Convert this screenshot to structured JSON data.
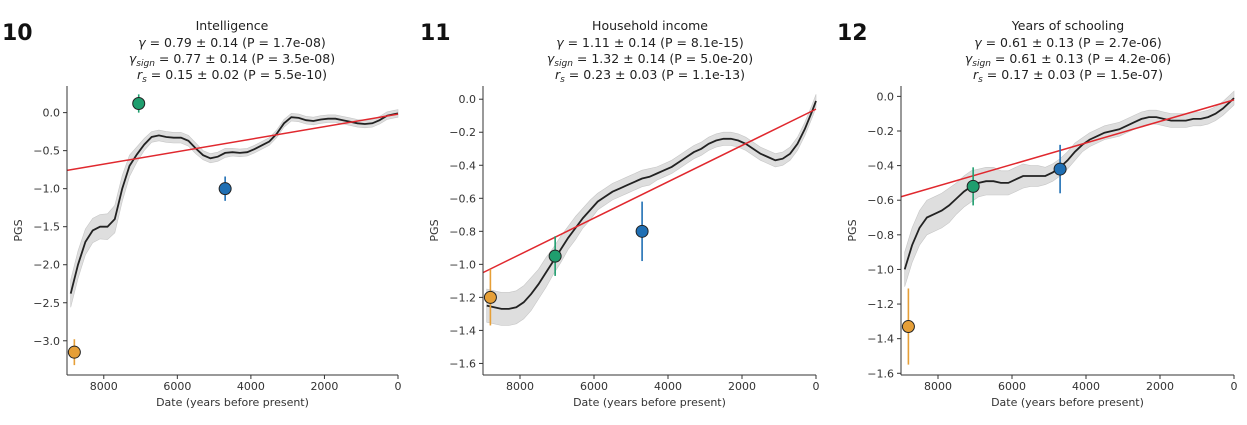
{
  "chart_data": [
    {
      "type": "line",
      "panel": "10",
      "title": "Intelligence",
      "stats": [
        {
          "sym": "γ",
          "sub": "",
          "text": " = 0.79 ± 0.14 (P = 1.7e-08)"
        },
        {
          "sym": "γ",
          "sub": "sign",
          "text": " = 0.77 ± 0.14 (P = 3.5e-08)"
        },
        {
          "sym": "r",
          "sub": "s",
          "text": " = 0.15 ± 0.02 (P = 5.5e-10)"
        }
      ],
      "xlabel": "Date (years before present)",
      "ylabel": "PGS",
      "xlim": [
        9000,
        0
      ],
      "ylim": [
        -3.45,
        0.35
      ],
      "xticks": [
        8000,
        6000,
        4000,
        2000,
        0
      ],
      "yticks": [
        0.0,
        -0.5,
        -1.0,
        -1.5,
        -2.0,
        -2.5,
        -3.0
      ],
      "ytick_labels": [
        "0.0",
        "−0.5",
        "−1.0",
        "−1.5",
        "−2.0",
        "−2.5",
        "−3.0"
      ],
      "smooth": {
        "x": [
          8900,
          8700,
          8500,
          8300,
          8100,
          7900,
          7700,
          7500,
          7300,
          7100,
          6900,
          6700,
          6500,
          6300,
          6100,
          5900,
          5700,
          5500,
          5300,
          5100,
          4900,
          4700,
          4500,
          4300,
          4100,
          3900,
          3700,
          3500,
          3300,
          3100,
          2900,
          2700,
          2500,
          2300,
          2100,
          1900,
          1700,
          1500,
          1300,
          1100,
          900,
          700,
          500,
          300,
          100,
          0
        ],
        "y": [
          -2.38,
          -2.0,
          -1.7,
          -1.55,
          -1.5,
          -1.5,
          -1.4,
          -1.0,
          -0.7,
          -0.55,
          -0.42,
          -0.32,
          -0.3,
          -0.32,
          -0.33,
          -0.33,
          -0.37,
          -0.47,
          -0.56,
          -0.6,
          -0.58,
          -0.53,
          -0.52,
          -0.53,
          -0.52,
          -0.48,
          -0.43,
          -0.38,
          -0.28,
          -0.14,
          -0.06,
          -0.07,
          -0.1,
          -0.11,
          -0.09,
          -0.08,
          -0.08,
          -0.1,
          -0.12,
          -0.14,
          -0.15,
          -0.14,
          -0.1,
          -0.04,
          -0.02,
          -0.01
        ],
        "band": [
          0.18,
          0.18,
          0.17,
          0.16,
          0.16,
          0.17,
          0.18,
          0.17,
          0.14,
          0.1,
          0.08,
          0.07,
          0.07,
          0.07,
          0.07,
          0.07,
          0.07,
          0.07,
          0.06,
          0.06,
          0.06,
          0.06,
          0.05,
          0.05,
          0.05,
          0.05,
          0.05,
          0.05,
          0.05,
          0.05,
          0.05,
          0.05,
          0.05,
          0.05,
          0.05,
          0.05,
          0.05,
          0.05,
          0.05,
          0.05,
          0.05,
          0.05,
          0.05,
          0.05,
          0.05,
          0.05
        ]
      },
      "fit": {
        "x": [
          9000,
          0
        ],
        "y": [
          -0.76,
          -0.02
        ]
      },
      "points": [
        {
          "x": 8800,
          "y": -3.15,
          "err": 0.17,
          "color": "#e69f37"
        },
        {
          "x": 7050,
          "y": 0.12,
          "err": 0.12,
          "color": "#1f9e6e"
        },
        {
          "x": 4700,
          "y": -1.0,
          "err": 0.16,
          "color": "#1f6fb4"
        }
      ]
    },
    {
      "type": "line",
      "panel": "11",
      "title": "Household income",
      "stats": [
        {
          "sym": "γ",
          "sub": "",
          "text": " = 1.11 ± 0.14 (P = 8.1e-15)"
        },
        {
          "sym": "γ",
          "sub": "sign",
          "text": " = 1.32 ± 0.14 (P = 5.0e-20)"
        },
        {
          "sym": "r",
          "sub": "s",
          "text": " = 0.23 ± 0.03 (P = 1.1e-13)"
        }
      ],
      "xlabel": "Date (years before present)",
      "ylabel": "PGS",
      "xlim": [
        9000,
        0
      ],
      "ylim": [
        -1.67,
        0.08
      ],
      "xticks": [
        8000,
        6000,
        4000,
        2000,
        0
      ],
      "yticks": [
        0.0,
        -0.2,
        -0.4,
        -0.6,
        -0.8,
        -1.0,
        -1.2,
        -1.4,
        -1.6
      ],
      "ytick_labels": [
        "0.0",
        "−0.2",
        "−0.4",
        "−0.6",
        "−0.8",
        "−1.0",
        "−1.2",
        "−1.4",
        "−1.6"
      ],
      "smooth": {
        "x": [
          8900,
          8700,
          8500,
          8300,
          8100,
          7900,
          7700,
          7500,
          7300,
          7100,
          6900,
          6700,
          6500,
          6300,
          6100,
          5900,
          5700,
          5500,
          5300,
          5100,
          4900,
          4700,
          4500,
          4300,
          4100,
          3900,
          3700,
          3500,
          3300,
          3100,
          2900,
          2700,
          2500,
          2300,
          2100,
          1900,
          1700,
          1500,
          1300,
          1100,
          900,
          700,
          500,
          300,
          100,
          0
        ],
        "y": [
          -1.25,
          -1.26,
          -1.27,
          -1.27,
          -1.26,
          -1.23,
          -1.18,
          -1.12,
          -1.05,
          -0.98,
          -0.91,
          -0.84,
          -0.78,
          -0.72,
          -0.67,
          -0.62,
          -0.59,
          -0.56,
          -0.54,
          -0.52,
          -0.5,
          -0.48,
          -0.47,
          -0.45,
          -0.43,
          -0.41,
          -0.38,
          -0.35,
          -0.32,
          -0.3,
          -0.27,
          -0.25,
          -0.24,
          -0.24,
          -0.25,
          -0.27,
          -0.3,
          -0.33,
          -0.35,
          -0.37,
          -0.36,
          -0.33,
          -0.27,
          -0.18,
          -0.07,
          -0.01
        ],
        "band": [
          0.1,
          0.1,
          0.1,
          0.1,
          0.1,
          0.1,
          0.1,
          0.09,
          0.09,
          0.08,
          0.08,
          0.07,
          0.07,
          0.06,
          0.06,
          0.05,
          0.05,
          0.05,
          0.05,
          0.05,
          0.05,
          0.05,
          0.05,
          0.04,
          0.04,
          0.04,
          0.04,
          0.04,
          0.04,
          0.04,
          0.04,
          0.04,
          0.04,
          0.04,
          0.04,
          0.04,
          0.04,
          0.04,
          0.04,
          0.04,
          0.04,
          0.04,
          0.04,
          0.04,
          0.04,
          0.04
        ]
      },
      "fit": {
        "x": [
          9000,
          0
        ],
        "y": [
          -1.05,
          -0.06
        ]
      },
      "points": [
        {
          "x": 8800,
          "y": -1.2,
          "err": 0.17,
          "color": "#e69f37"
        },
        {
          "x": 7050,
          "y": -0.95,
          "err": 0.12,
          "color": "#1f9e6e"
        },
        {
          "x": 4700,
          "y": -0.8,
          "err": 0.18,
          "color": "#1f6fb4"
        }
      ]
    },
    {
      "type": "line",
      "panel": "12",
      "title": "Years of schooling",
      "stats": [
        {
          "sym": "γ",
          "sub": "",
          "text": " = 0.61 ± 0.13 (P = 2.7e-06)"
        },
        {
          "sym": "γ",
          "sub": "sign",
          "text": " = 0.61 ± 0.13 (P = 4.2e-06)"
        },
        {
          "sym": "r",
          "sub": "s",
          "text": " = 0.17 ± 0.03 (P = 1.5e-07)"
        }
      ],
      "xlabel": "Date (years before present)",
      "ylabel": "PGS",
      "xlim": [
        9000,
        0
      ],
      "ylim": [
        -1.61,
        0.06
      ],
      "xticks": [
        8000,
        6000,
        4000,
        2000,
        0
      ],
      "yticks": [
        0.0,
        -0.2,
        -0.4,
        -0.6,
        -0.8,
        -1.0,
        -1.2,
        -1.4,
        -1.6
      ],
      "ytick_labels": [
        "0.0",
        "−0.2",
        "−0.4",
        "−0.6",
        "−0.8",
        "−1.0",
        "−1.2",
        "−1.4",
        "−1.6"
      ],
      "smooth": {
        "x": [
          8900,
          8700,
          8500,
          8300,
          8100,
          7900,
          7700,
          7500,
          7300,
          7100,
          6900,
          6700,
          6500,
          6300,
          6100,
          5900,
          5700,
          5500,
          5300,
          5100,
          4900,
          4700,
          4500,
          4300,
          4100,
          3900,
          3700,
          3500,
          3300,
          3100,
          2900,
          2700,
          2500,
          2300,
          2100,
          1900,
          1700,
          1500,
          1300,
          1100,
          900,
          700,
          500,
          300,
          100,
          0
        ],
        "y": [
          -1.0,
          -0.86,
          -0.76,
          -0.7,
          -0.68,
          -0.66,
          -0.63,
          -0.59,
          -0.55,
          -0.52,
          -0.5,
          -0.49,
          -0.49,
          -0.5,
          -0.5,
          -0.48,
          -0.46,
          -0.46,
          -0.46,
          -0.46,
          -0.44,
          -0.41,
          -0.37,
          -0.32,
          -0.28,
          -0.25,
          -0.23,
          -0.21,
          -0.2,
          -0.19,
          -0.17,
          -0.15,
          -0.13,
          -0.12,
          -0.12,
          -0.13,
          -0.14,
          -0.14,
          -0.14,
          -0.13,
          -0.13,
          -0.12,
          -0.1,
          -0.07,
          -0.03,
          -0.01
        ],
        "band": [
          0.1,
          0.1,
          0.1,
          0.1,
          0.1,
          0.1,
          0.1,
          0.09,
          0.09,
          0.09,
          0.08,
          0.08,
          0.08,
          0.07,
          0.07,
          0.07,
          0.07,
          0.06,
          0.06,
          0.05,
          0.05,
          0.05,
          0.05,
          0.05,
          0.04,
          0.04,
          0.04,
          0.04,
          0.04,
          0.04,
          0.04,
          0.04,
          0.04,
          0.04,
          0.04,
          0.04,
          0.04,
          0.04,
          0.04,
          0.04,
          0.04,
          0.04,
          0.04,
          0.04,
          0.04,
          0.04
        ]
      },
      "fit": {
        "x": [
          9000,
          0
        ],
        "y": [
          -0.58,
          -0.02
        ]
      },
      "points": [
        {
          "x": 8800,
          "y": -1.33,
          "err": 0.22,
          "color": "#e69f37"
        },
        {
          "x": 7050,
          "y": -0.52,
          "err": 0.11,
          "color": "#1f9e6e"
        },
        {
          "x": 4700,
          "y": -0.42,
          "err": 0.14,
          "color": "#1f6fb4"
        }
      ]
    }
  ],
  "colors": {
    "smooth_line": "#222222",
    "band": "#d9d9d9",
    "fit_line": "#e0282e"
  }
}
